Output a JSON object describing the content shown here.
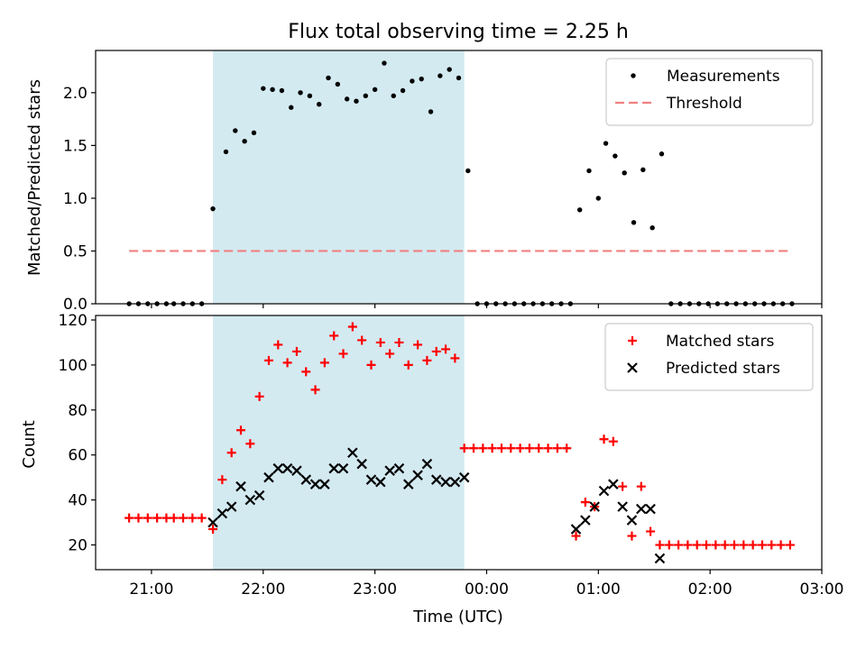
{
  "figure": {
    "title": "Flux total observing time = 2.25 h"
  },
  "chart_data": [
    {
      "type": "scatter",
      "panel": "top",
      "title": "Flux total observing time = 2.25 h",
      "xlabel": "",
      "ylabel": "Matched/Predicted stars",
      "xlim": [
        "20:30",
        "03:00"
      ],
      "ylim": [
        0,
        2.4
      ],
      "yticks": [
        0.0,
        0.5,
        1.0,
        1.5,
        2.0
      ],
      "ytick_labels": [
        "0.0",
        "0.5",
        "1.0",
        "1.5",
        "2.0"
      ],
      "xticks": [
        "21:00",
        "22:00",
        "23:00",
        "00:00",
        "01:00",
        "02:00",
        "03:00"
      ],
      "legend_position": "upper right",
      "shaded_region": {
        "x_start": "21:33",
        "x_end": "23:48",
        "color": "#d3eaf1"
      },
      "series": [
        {
          "name": "Measurements",
          "marker": "dot",
          "color": "#000000",
          "points": [
            [
              "20:48",
              0.0
            ],
            [
              "20:53",
              0.0
            ],
            [
              "20:58",
              0.0
            ],
            [
              "21:03",
              0.0
            ],
            [
              "21:08",
              0.0
            ],
            [
              "21:12",
              0.0
            ],
            [
              "21:17",
              0.0
            ],
            [
              "21:22",
              0.0
            ],
            [
              "21:27",
              0.0
            ],
            [
              "21:33",
              0.9
            ],
            [
              "21:40",
              1.44
            ],
            [
              "21:45",
              1.64
            ],
            [
              "21:50",
              1.54
            ],
            [
              "21:55",
              1.62
            ],
            [
              "22:00",
              2.04
            ],
            [
              "22:05",
              2.03
            ],
            [
              "22:10",
              2.02
            ],
            [
              "22:15",
              1.86
            ],
            [
              "22:20",
              2.0
            ],
            [
              "22:25",
              1.97
            ],
            [
              "22:30",
              1.89
            ],
            [
              "22:35",
              2.14
            ],
            [
              "22:40",
              2.08
            ],
            [
              "22:45",
              1.94
            ],
            [
              "22:50",
              1.92
            ],
            [
              "22:55",
              1.97
            ],
            [
              "23:00",
              2.03
            ],
            [
              "23:05",
              2.28
            ],
            [
              "23:10",
              1.97
            ],
            [
              "23:15",
              2.02
            ],
            [
              "23:20",
              2.11
            ],
            [
              "23:25",
              2.13
            ],
            [
              "23:30",
              1.82
            ],
            [
              "23:35",
              2.16
            ],
            [
              "23:40",
              2.22
            ],
            [
              "23:45",
              2.14
            ],
            [
              "23:50",
              1.26
            ],
            [
              "23:55",
              0.0
            ],
            [
              "00:00",
              0.0
            ],
            [
              "00:05",
              0.0
            ],
            [
              "00:10",
              0.0
            ],
            [
              "00:15",
              0.0
            ],
            [
              "00:20",
              0.0
            ],
            [
              "00:25",
              0.0
            ],
            [
              "00:30",
              0.0
            ],
            [
              "00:35",
              0.0
            ],
            [
              "00:40",
              0.0
            ],
            [
              "00:45",
              0.0
            ],
            [
              "00:50",
              0.89
            ],
            [
              "00:55",
              1.26
            ],
            [
              "01:00",
              1.0
            ],
            [
              "01:04",
              1.52
            ],
            [
              "01:09",
              1.4
            ],
            [
              "01:14",
              1.24
            ],
            [
              "01:19",
              0.77
            ],
            [
              "01:24",
              1.27
            ],
            [
              "01:29",
              0.72
            ],
            [
              "01:34",
              1.42
            ],
            [
              "01:39",
              0.0
            ],
            [
              "01:44",
              0.0
            ],
            [
              "01:49",
              0.0
            ],
            [
              "01:54",
              0.0
            ],
            [
              "01:59",
              0.0
            ],
            [
              "02:04",
              0.0
            ],
            [
              "02:09",
              0.0
            ],
            [
              "02:14",
              0.0
            ],
            [
              "02:19",
              0.0
            ],
            [
              "02:24",
              0.0
            ],
            [
              "02:29",
              0.0
            ],
            [
              "02:34",
              0.0
            ],
            [
              "02:39",
              0.0
            ],
            [
              "02:44",
              0.0
            ]
          ]
        },
        {
          "name": "Threshold",
          "marker": "dashed-line",
          "color": "#f08080",
          "points": [
            [
              "20:48",
              0.5
            ],
            [
              "02:44",
              0.5
            ]
          ]
        }
      ]
    },
    {
      "type": "scatter",
      "panel": "bottom",
      "xlabel": "Time (UTC)",
      "ylabel": "Count",
      "xlim": [
        "20:30",
        "03:00"
      ],
      "ylim": [
        9,
        122
      ],
      "yticks": [
        20,
        40,
        60,
        80,
        100,
        120
      ],
      "ytick_labels": [
        "20",
        "40",
        "60",
        "80",
        "100",
        "120"
      ],
      "xticks": [
        "21:00",
        "22:00",
        "23:00",
        "00:00",
        "01:00",
        "02:00",
        "03:00"
      ],
      "legend_position": "upper right",
      "shaded_region": {
        "x_start": "21:33",
        "x_end": "23:48",
        "color": "#d3eaf1"
      },
      "series": [
        {
          "name": "Matched stars",
          "marker": "plus",
          "color": "#ff0000",
          "points": [
            [
              "20:48",
              32
            ],
            [
              "20:53",
              32
            ],
            [
              "20:58",
              32
            ],
            [
              "21:03",
              32
            ],
            [
              "21:08",
              32
            ],
            [
              "21:12",
              32
            ],
            [
              "21:17",
              32
            ],
            [
              "21:22",
              32
            ],
            [
              "21:27",
              32
            ],
            [
              "21:33",
              27
            ],
            [
              "21:38",
              49
            ],
            [
              "21:43",
              61
            ],
            [
              "21:48",
              71
            ],
            [
              "21:53",
              65
            ],
            [
              "21:58",
              86
            ],
            [
              "22:03",
              102
            ],
            [
              "22:08",
              109
            ],
            [
              "22:13",
              101
            ],
            [
              "22:18",
              106
            ],
            [
              "22:23",
              97
            ],
            [
              "22:28",
              89
            ],
            [
              "22:33",
              101
            ],
            [
              "22:38",
              113
            ],
            [
              "22:43",
              105
            ],
            [
              "22:48",
              117
            ],
            [
              "22:53",
              111
            ],
            [
              "22:58",
              100
            ],
            [
              "23:03",
              110
            ],
            [
              "23:08",
              105
            ],
            [
              "23:13",
              110
            ],
            [
              "23:18",
              100
            ],
            [
              "23:23",
              109
            ],
            [
              "23:28",
              102
            ],
            [
              "23:33",
              106
            ],
            [
              "23:38",
              107
            ],
            [
              "23:43",
              103
            ],
            [
              "23:48",
              63
            ],
            [
              "23:53",
              63
            ],
            [
              "23:58",
              63
            ],
            [
              "00:03",
              63
            ],
            [
              "00:08",
              63
            ],
            [
              "00:13",
              63
            ],
            [
              "00:18",
              63
            ],
            [
              "00:23",
              63
            ],
            [
              "00:28",
              63
            ],
            [
              "00:33",
              63
            ],
            [
              "00:38",
              63
            ],
            [
              "00:43",
              63
            ],
            [
              "00:48",
              24
            ],
            [
              "00:53",
              39
            ],
            [
              "00:58",
              37
            ],
            [
              "01:03",
              67
            ],
            [
              "01:08",
              66
            ],
            [
              "01:13",
              46
            ],
            [
              "01:18",
              24
            ],
            [
              "01:23",
              46
            ],
            [
              "01:28",
              26
            ],
            [
              "01:33",
              20
            ],
            [
              "01:38",
              20
            ],
            [
              "01:43",
              20
            ],
            [
              "01:48",
              20
            ],
            [
              "01:53",
              20
            ],
            [
              "01:58",
              20
            ],
            [
              "02:03",
              20
            ],
            [
              "02:08",
              20
            ],
            [
              "02:13",
              20
            ],
            [
              "02:18",
              20
            ],
            [
              "02:23",
              20
            ],
            [
              "02:28",
              20
            ],
            [
              "02:33",
              20
            ],
            [
              "02:38",
              20
            ],
            [
              "02:43",
              20
            ]
          ]
        },
        {
          "name": "Predicted stars",
          "marker": "x",
          "color": "#000000",
          "points": [
            [
              "21:33",
              30
            ],
            [
              "21:38",
              34
            ],
            [
              "21:43",
              37
            ],
            [
              "21:48",
              46
            ],
            [
              "21:53",
              40
            ],
            [
              "21:58",
              42
            ],
            [
              "22:03",
              50
            ],
            [
              "22:08",
              54
            ],
            [
              "22:13",
              54
            ],
            [
              "22:18",
              53
            ],
            [
              "22:23",
              49
            ],
            [
              "22:28",
              47
            ],
            [
              "22:33",
              47
            ],
            [
              "22:38",
              54
            ],
            [
              "22:43",
              54
            ],
            [
              "22:48",
              61
            ],
            [
              "22:53",
              56
            ],
            [
              "22:58",
              49
            ],
            [
              "23:03",
              48
            ],
            [
              "23:08",
              53
            ],
            [
              "23:13",
              54
            ],
            [
              "23:18",
              47
            ],
            [
              "23:23",
              51
            ],
            [
              "23:28",
              56
            ],
            [
              "23:33",
              49
            ],
            [
              "23:38",
              48
            ],
            [
              "23:43",
              48
            ],
            [
              "23:48",
              50
            ],
            [
              "00:48",
              27
            ],
            [
              "00:53",
              31
            ],
            [
              "00:58",
              37
            ],
            [
              "01:03",
              44
            ],
            [
              "01:08",
              47
            ],
            [
              "01:13",
              37
            ],
            [
              "01:18",
              31
            ],
            [
              "01:23",
              36
            ],
            [
              "01:28",
              36
            ],
            [
              "01:33",
              14
            ]
          ]
        }
      ]
    }
  ]
}
